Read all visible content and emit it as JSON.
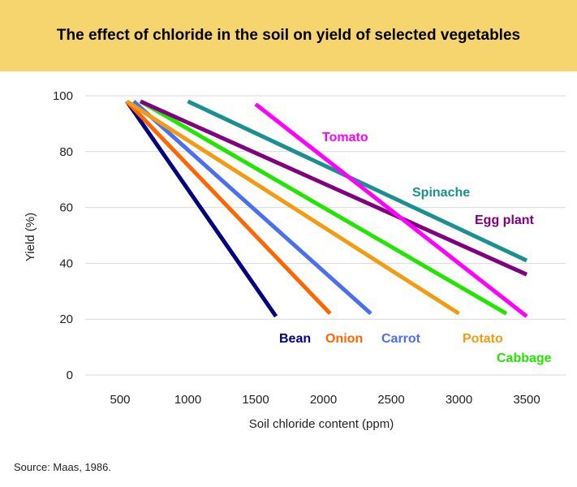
{
  "title": "The effect of chloride in the soil on yield of selected vegetables",
  "source": "Source: Maas, 1986.",
  "colors": {
    "banner": "#F7D56E",
    "grid": "#d9d9d9"
  },
  "chart_data": {
    "type": "line",
    "title": "The effect of chloride in the soil on yield of selected vegetables",
    "xlabel": "Soil chloride content (ppm)",
    "ylabel": "Yield (%)",
    "xlim": [
      400,
      3650
    ],
    "ylim": [
      0,
      100
    ],
    "xticks": [
      500,
      1000,
      1500,
      2000,
      2500,
      3000,
      3500
    ],
    "yticks": [
      0,
      20,
      40,
      60,
      80,
      100
    ],
    "grid": true,
    "legend": "inline labels",
    "series": [
      {
        "name": "Bean",
        "color": "#000080",
        "x": [
          550,
          1650
        ],
        "y": [
          98,
          21
        ]
      },
      {
        "name": "Onion",
        "color": "#FF6600",
        "x": [
          550,
          2050
        ],
        "y": [
          98,
          22
        ]
      },
      {
        "name": "Carrot",
        "color": "#4A6FF0",
        "x": [
          600,
          2350
        ],
        "y": [
          98,
          22
        ]
      },
      {
        "name": "Potato",
        "color": "#F39C12",
        "x": [
          550,
          3000
        ],
        "y": [
          98,
          22
        ]
      },
      {
        "name": "Cabbage",
        "color": "#22E600",
        "x": [
          650,
          3350
        ],
        "y": [
          98,
          22
        ]
      },
      {
        "name": "Egg plant",
        "color": "#800080",
        "x": [
          650,
          3500
        ],
        "y": [
          98,
          36
        ]
      },
      {
        "name": "Spinache",
        "color": "#1A9090",
        "x": [
          1000,
          3500
        ],
        "y": [
          98,
          41
        ]
      },
      {
        "name": "Tomato",
        "color": "#FF00FF",
        "x": [
          1500,
          3500
        ],
        "y": [
          97,
          21
        ]
      }
    ]
  }
}
